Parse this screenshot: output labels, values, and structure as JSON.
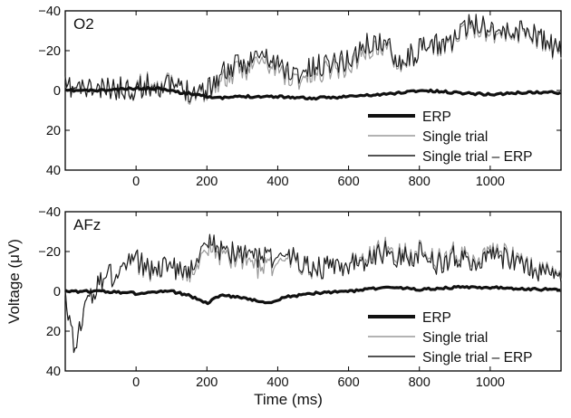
{
  "chart_data": {
    "type": "line",
    "ylabel": "Voltage (μV)",
    "xlabel": "Time (ms)",
    "xlim": [
      -200,
      1200
    ],
    "ylim": [
      -40,
      40
    ],
    "y_inverted": true,
    "x_ticks": [
      0,
      200,
      400,
      600,
      800,
      1000
    ],
    "y_ticks": [
      -40,
      -20,
      0,
      20,
      40
    ],
    "y_tick_labels": [
      "−40",
      "−20",
      "0",
      "20",
      "40"
    ],
    "legend": {
      "placement": "bottom-right",
      "entries": [
        "ERP",
        "Single trial",
        "Single trial – ERP"
      ]
    },
    "panels": [
      {
        "label": "O2",
        "series": [
          {
            "name": "ERP",
            "x": [
              -200,
              -100,
              0,
              80,
              120,
              180,
              230,
              300,
              400,
              500,
              600,
              700,
              800,
              900,
              1000,
              1100,
              1200
            ],
            "y": [
              0,
              0,
              -1,
              -1,
              1,
              2,
              4,
              3,
              3,
              4,
              3,
              2,
              0,
              1,
              2,
              1,
              1
            ]
          },
          {
            "name": "Single trial",
            "x": [
              -200,
              -150,
              -100,
              -50,
              0,
              50,
              100,
              150,
              200,
              250,
              300,
              350,
              400,
              450,
              500,
              550,
              600,
              650,
              700,
              750,
              800,
              850,
              900,
              950,
              1000,
              1050,
              1100,
              1150,
              1200
            ],
            "y": [
              -1,
              -1,
              0,
              -1,
              -2,
              -4,
              -3,
              1,
              0,
              -6,
              -10,
              -15,
              -10,
              -5,
              -8,
              -12,
              -12,
              -20,
              -22,
              -14,
              -20,
              -22,
              -25,
              -32,
              -30,
              -28,
              -30,
              -24,
              -18
            ]
          },
          {
            "name": "Single trial – ERP",
            "x": [
              -200,
              -150,
              -100,
              -50,
              0,
              50,
              100,
              150,
              200,
              250,
              300,
              350,
              400,
              450,
              500,
              550,
              600,
              650,
              700,
              750,
              800,
              850,
              900,
              950,
              1000,
              1050,
              1100,
              1150,
              1200
            ],
            "y": [
              -1,
              -1,
              0,
              -1,
              -1,
              -3,
              -2,
              0,
              -1,
              -10,
              -13,
              -18,
              -13,
              -8,
              -11,
              -15,
              -15,
              -23,
              -24,
              -15,
              -20,
              -23,
              -26,
              -34,
              -32,
              -29,
              -31,
              -25,
              -19
            ]
          }
        ]
      },
      {
        "label": "AFz",
        "series": [
          {
            "name": "ERP",
            "x": [
              -200,
              -100,
              0,
              100,
              150,
              200,
              240,
              300,
              380,
              420,
              500,
              600,
              700,
              800,
              900,
              1000,
              1100,
              1200
            ],
            "y": [
              0,
              0,
              1,
              0,
              2,
              6,
              2,
              3,
              6,
              3,
              1,
              0,
              -2,
              -1,
              -2,
              -2,
              -1,
              -1
            ]
          },
          {
            "name": "Single trial",
            "x": [
              -200,
              -170,
              -150,
              -100,
              -50,
              0,
              50,
              100,
              150,
              200,
              250,
              300,
              350,
              400,
              450,
              500,
              550,
              600,
              650,
              700,
              750,
              800,
              850,
              900,
              950,
              1000,
              1050,
              1100,
              1150,
              1200
            ],
            "y": [
              5,
              30,
              10,
              -5,
              -10,
              -15,
              -10,
              -12,
              -10,
              -20,
              -18,
              -15,
              -12,
              -14,
              -15,
              -12,
              -12,
              -14,
              -16,
              -22,
              -18,
              -20,
              -16,
              -20,
              -15,
              -20,
              -18,
              -12,
              -12,
              -8
            ]
          },
          {
            "name": "Single trial – ERP",
            "x": [
              -200,
              -170,
              -150,
              -100,
              -50,
              0,
              50,
              100,
              150,
              200,
              250,
              300,
              350,
              400,
              450,
              500,
              550,
              600,
              650,
              700,
              750,
              800,
              850,
              900,
              950,
              1000,
              1050,
              1100,
              1150,
              1200
            ],
            "y": [
              5,
              30,
              10,
              -5,
              -10,
              -16,
              -11,
              -12,
              -12,
              -24,
              -20,
              -18,
              -18,
              -17,
              -16,
              -13,
              -12,
              -14,
              -14,
              -20,
              -16,
              -19,
              -14,
              -18,
              -13,
              -18,
              -16,
              -11,
              -11,
              -7
            ]
          }
        ]
      }
    ]
  }
}
